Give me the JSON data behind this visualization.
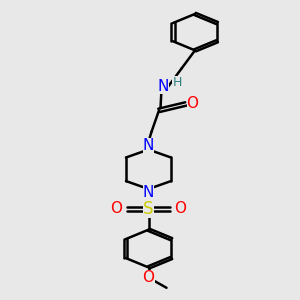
{
  "bg_color": "#e8e8e8",
  "line_color": "#000000",
  "N_color": "#0000ff",
  "O_color": "#ff0000",
  "S_color": "#cccc00",
  "H_color": "#2f8080",
  "line_width": 1.8,
  "font_size": 11,
  "xlim": [
    0,
    10
  ],
  "ylim": [
    0,
    14
  ]
}
